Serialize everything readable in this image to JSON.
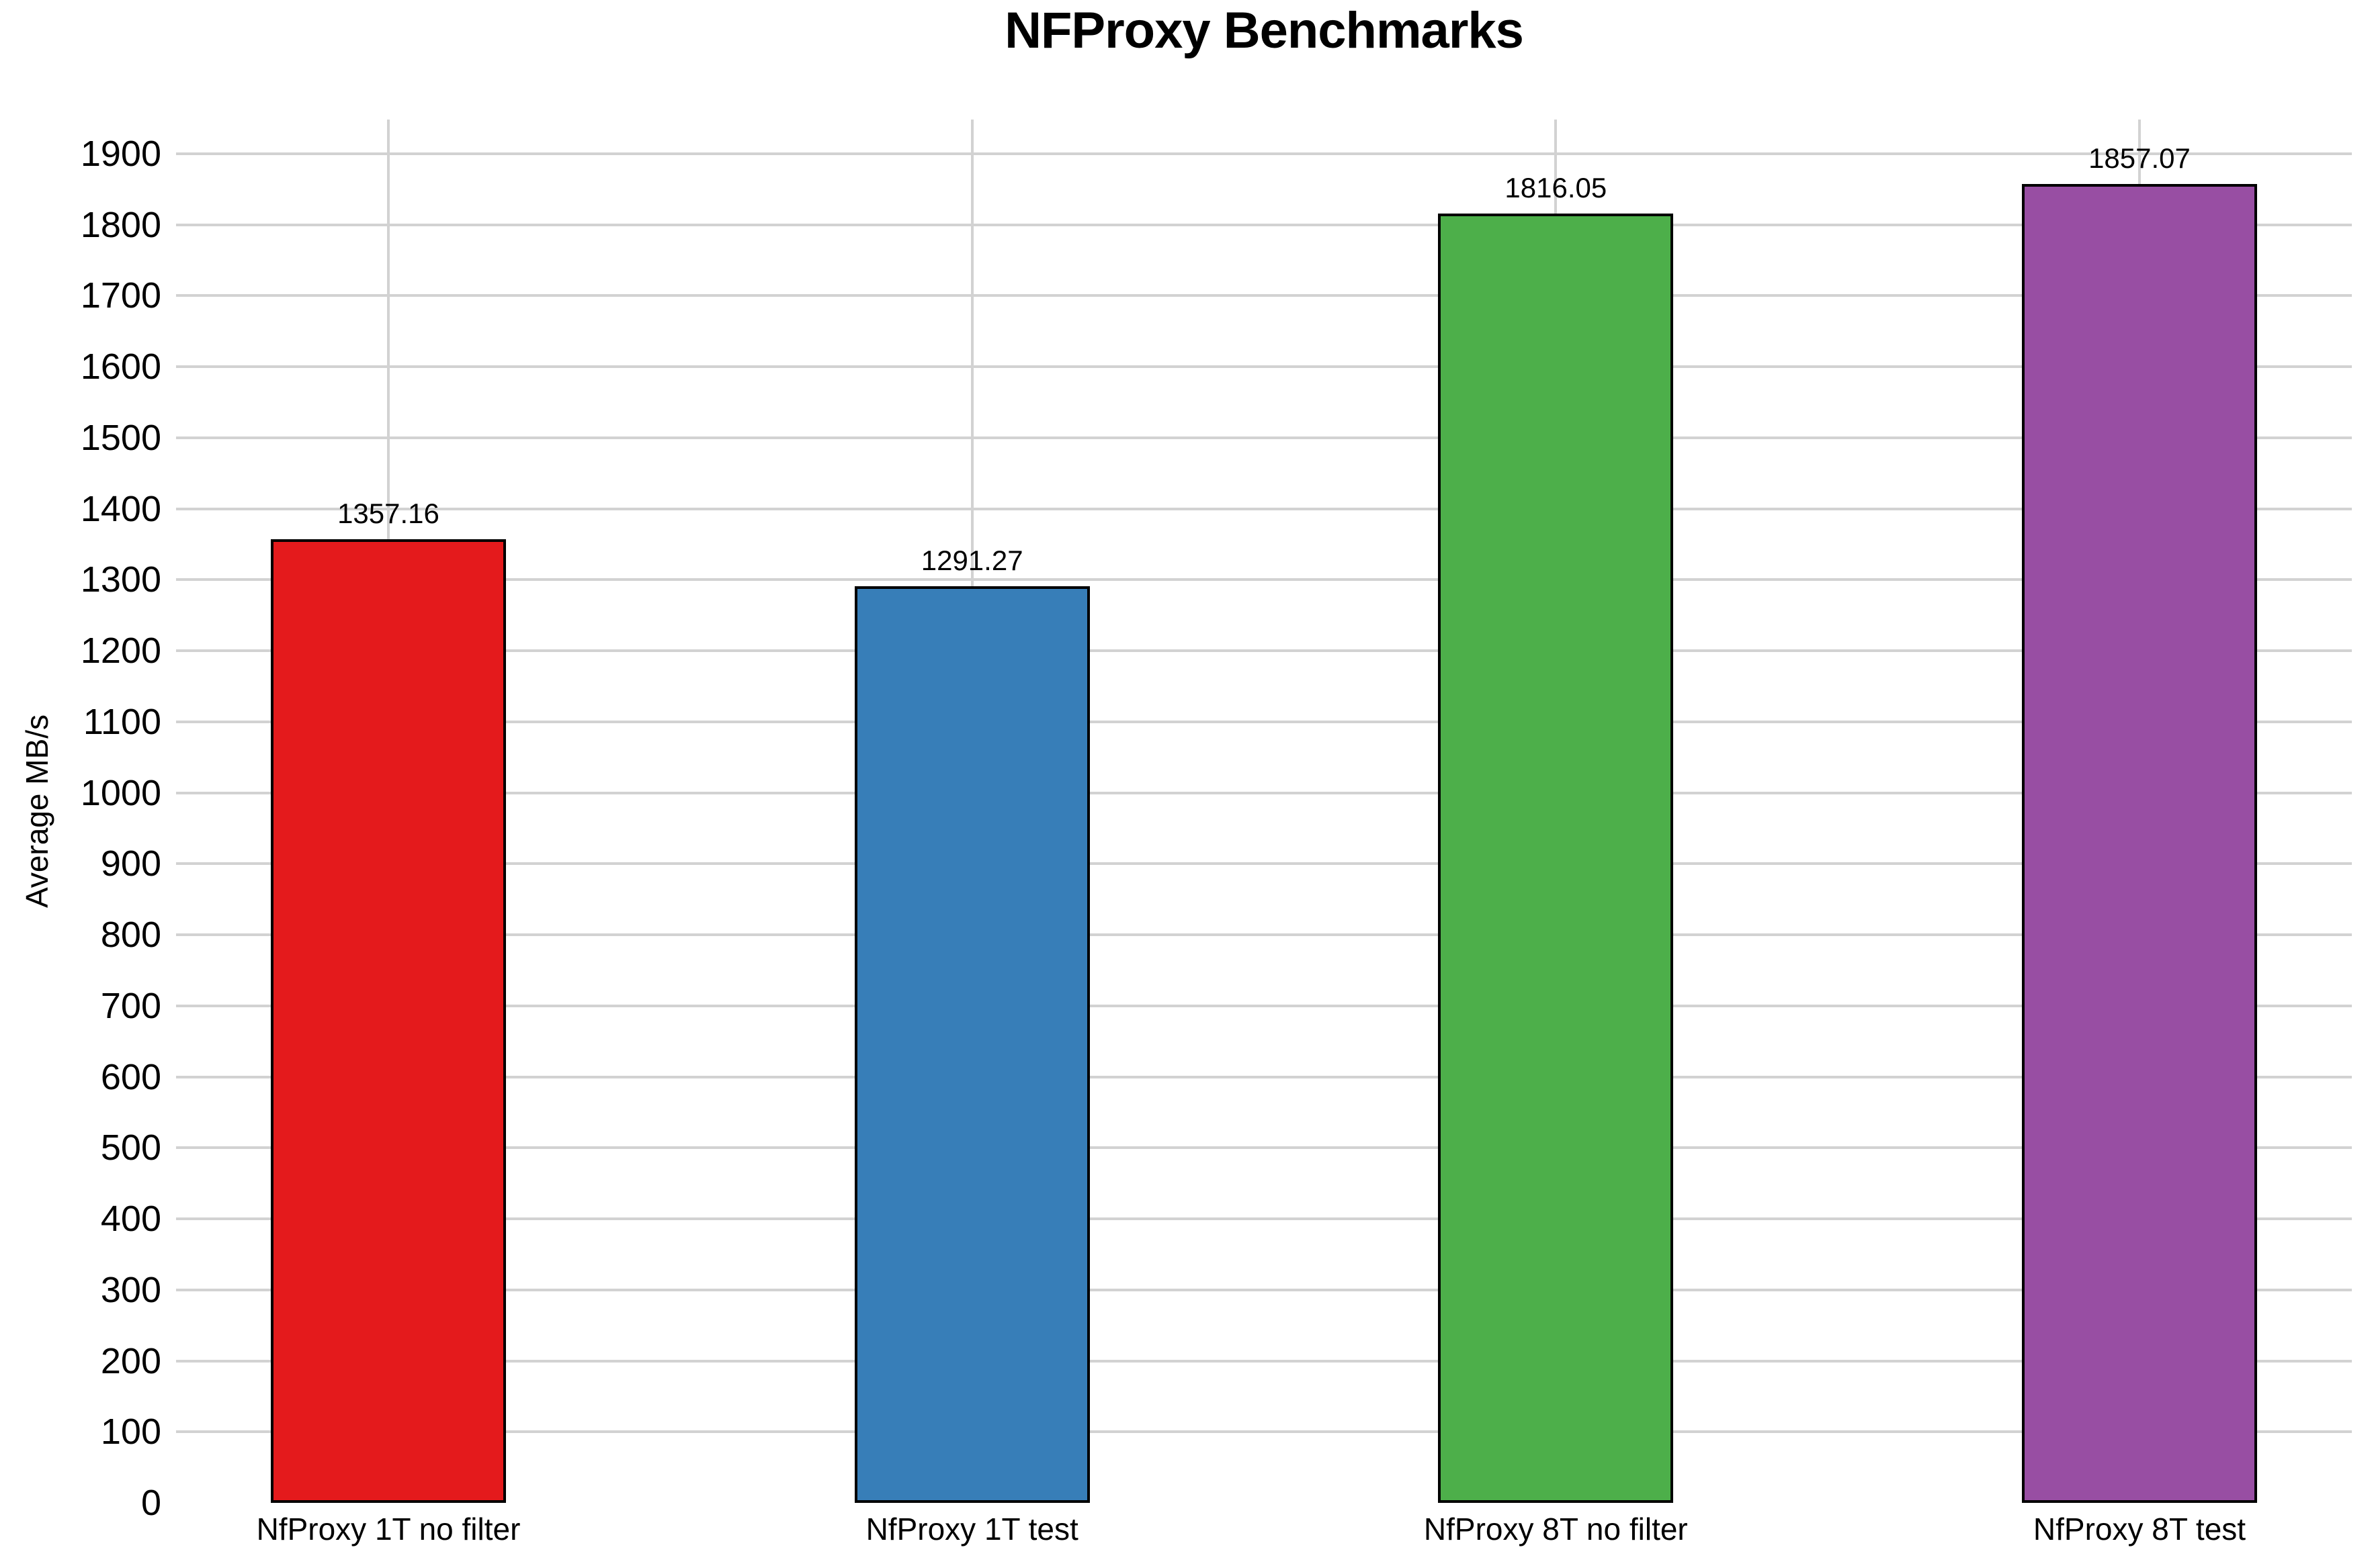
{
  "chart_data": {
    "type": "bar",
    "title": "NFProxy Benchmarks",
    "ylabel": "Average MB/s",
    "xlabel": "",
    "categories": [
      "NfProxy 1T no filter",
      "NfProxy 1T test",
      "NfProxy 8T no filter",
      "NfProxy 8T test"
    ],
    "values": [
      1357.16,
      1291.27,
      1816.05,
      1857.07
    ],
    "value_labels": [
      "1357.16",
      "1291.27",
      "1816.05",
      "1857.07"
    ],
    "bar_colors": [
      "#e41a1c",
      "#377eb8",
      "#4daf4a",
      "#984ea3"
    ],
    "bar_border_color": "#000000",
    "grid": true,
    "grid_color": "#d2d2d2",
    "background_color": "#ffffff",
    "text_color": "#000000",
    "ylim": [
      0,
      1948
    ],
    "yticks": [
      0,
      100,
      200,
      300,
      400,
      500,
      600,
      700,
      800,
      900,
      1000,
      1100,
      1200,
      1300,
      1400,
      1500,
      1600,
      1700,
      1800,
      1900
    ],
    "legend_position": "none"
  }
}
